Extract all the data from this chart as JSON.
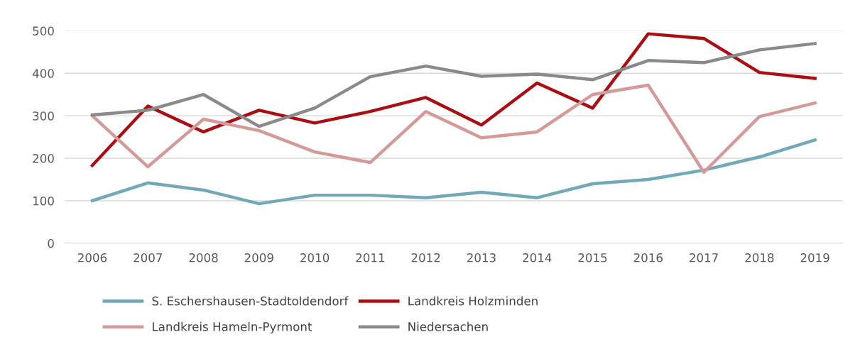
{
  "chart_data": {
    "type": "line",
    "categories": [
      "2006",
      "2007",
      "2008",
      "2009",
      "2010",
      "2011",
      "2012",
      "2013",
      "2014",
      "2015",
      "2016",
      "2017",
      "2018",
      "2019"
    ],
    "series": [
      {
        "name": "S. Eschershausen-Stadtoldendorf",
        "color": "#72a9b8",
        "values": [
          100,
          142,
          125,
          93,
          113,
          113,
          107,
          120,
          107,
          140,
          150,
          172,
          203,
          243
        ]
      },
      {
        "name": "Landkreis Holzminden",
        "color": "#aa0e12",
        "values": [
          183,
          323,
          262,
          313,
          283,
          310,
          343,
          278,
          377,
          318,
          493,
          482,
          402,
          388
        ]
      },
      {
        "name": "Landkreis Hameln-Pyrmont",
        "color": "#d49a98",
        "values": [
          300,
          180,
          292,
          265,
          215,
          190,
          310,
          248,
          262,
          350,
          372,
          167,
          298,
          330
        ]
      },
      {
        "name": "Niedersachen",
        "color": "#8a8a8a",
        "values": [
          302,
          313,
          350,
          275,
          318,
          392,
          417,
          393,
          398,
          385,
          430,
          425,
          455,
          470
        ]
      }
    ],
    "ylim": [
      0,
      500
    ],
    "yticks": [
      0,
      100,
      200,
      300,
      400,
      500
    ],
    "grid": "y",
    "legend": "bottom",
    "marker": "none",
    "line_style": "solid"
  }
}
